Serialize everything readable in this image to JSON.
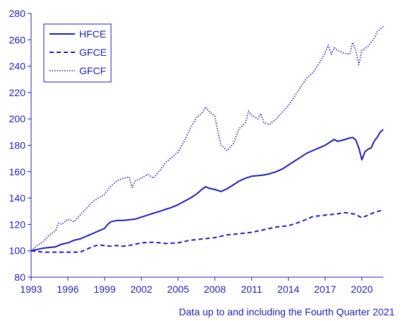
{
  "chart_data": {
    "type": "line",
    "title": "",
    "xlabel": "",
    "ylabel": "",
    "footnote": "Data up to and including the Fourth Quarter 2021",
    "xlim": [
      1993,
      2021.75
    ],
    "ylim": [
      80,
      280
    ],
    "x_ticks": [
      1993,
      1996,
      1999,
      2002,
      2005,
      2008,
      2011,
      2014,
      2017,
      2020
    ],
    "x_tick_labels": [
      "1993",
      "1996",
      "1999",
      "2002",
      "2005",
      "2008",
      "2011",
      "2014",
      "2017",
      "2020"
    ],
    "y_ticks": [
      80,
      100,
      120,
      140,
      160,
      180,
      200,
      220,
      240,
      260,
      280
    ],
    "y_tick_labels": [
      "80",
      "100",
      "120",
      "140",
      "160",
      "180",
      "200",
      "220",
      "240",
      "260",
      "280"
    ],
    "grid": false,
    "legend_position": "top-left",
    "color": "#1f1f9e",
    "series": [
      {
        "name": "HFCE",
        "style": "solid",
        "points": [
          [
            1993,
            100
          ],
          [
            1993.5,
            101
          ],
          [
            1994,
            102
          ],
          [
            1994.5,
            102.5
          ],
          [
            1995,
            103
          ],
          [
            1995.5,
            105
          ],
          [
            1996,
            106
          ],
          [
            1996.5,
            108
          ],
          [
            1997,
            109
          ],
          [
            1997.5,
            111
          ],
          [
            1998,
            113
          ],
          [
            1998.5,
            115
          ],
          [
            1999,
            117
          ],
          [
            1999.25,
            120
          ],
          [
            1999.5,
            122
          ],
          [
            2000,
            123
          ],
          [
            2000.5,
            123
          ],
          [
            2001,
            123.5
          ],
          [
            2001.5,
            124
          ],
          [
            2002,
            125.5
          ],
          [
            2002.5,
            127
          ],
          [
            2003,
            128.5
          ],
          [
            2003.5,
            130
          ],
          [
            2004,
            131.5
          ],
          [
            2004.5,
            133
          ],
          [
            2005,
            135
          ],
          [
            2005.5,
            137.5
          ],
          [
            2006,
            140
          ],
          [
            2006.5,
            143
          ],
          [
            2007,
            147
          ],
          [
            2007.25,
            148.5
          ],
          [
            2007.5,
            147.5
          ],
          [
            2008,
            146.5
          ],
          [
            2008.5,
            145
          ],
          [
            2009,
            147
          ],
          [
            2009.5,
            150
          ],
          [
            2010,
            153
          ],
          [
            2010.5,
            155
          ],
          [
            2011,
            156.5
          ],
          [
            2011.5,
            157
          ],
          [
            2012,
            157.5
          ],
          [
            2012.5,
            158.5
          ],
          [
            2013,
            160
          ],
          [
            2013.5,
            162
          ],
          [
            2014,
            165
          ],
          [
            2014.5,
            168
          ],
          [
            2015,
            171
          ],
          [
            2015.5,
            174
          ],
          [
            2016,
            176
          ],
          [
            2016.5,
            178
          ],
          [
            2017,
            180
          ],
          [
            2017.5,
            183
          ],
          [
            2017.75,
            184.5
          ],
          [
            2018,
            183
          ],
          [
            2018.5,
            184
          ],
          [
            2019,
            185.5
          ],
          [
            2019.25,
            186
          ],
          [
            2019.5,
            184
          ],
          [
            2019.75,
            178
          ],
          [
            2020,
            169
          ],
          [
            2020.25,
            175
          ],
          [
            2020.5,
            177
          ],
          [
            2020.75,
            178
          ],
          [
            2021,
            183
          ],
          [
            2021.25,
            186
          ],
          [
            2021.5,
            190
          ],
          [
            2021.75,
            192
          ]
        ]
      },
      {
        "name": "GFCE",
        "style": "dashed",
        "points": [
          [
            1993,
            100
          ],
          [
            1994,
            99
          ],
          [
            1995,
            99
          ],
          [
            1996,
            99
          ],
          [
            1997,
            99
          ],
          [
            1997.5,
            101
          ],
          [
            1998,
            103
          ],
          [
            1998.5,
            104.5
          ],
          [
            1999,
            104
          ],
          [
            1999.5,
            103.5
          ],
          [
            2000,
            104
          ],
          [
            2000.5,
            103.5
          ],
          [
            2001,
            104
          ],
          [
            2001.5,
            105
          ],
          [
            2002,
            106
          ],
          [
            2003,
            106.5
          ],
          [
            2004,
            105.5
          ],
          [
            2005,
            106
          ],
          [
            2005.5,
            107
          ],
          [
            2006,
            108
          ],
          [
            2007,
            109
          ],
          [
            2008,
            110
          ],
          [
            2009,
            112
          ],
          [
            2010,
            113
          ],
          [
            2011,
            114
          ],
          [
            2012,
            116
          ],
          [
            2013,
            118
          ],
          [
            2014,
            119
          ],
          [
            2015,
            122
          ],
          [
            2016,
            126
          ],
          [
            2017,
            127
          ],
          [
            2018,
            128
          ],
          [
            2018.5,
            129
          ],
          [
            2019,
            128.5
          ],
          [
            2019.5,
            127.5
          ],
          [
            2020,
            125
          ],
          [
            2020.5,
            127
          ],
          [
            2021,
            129
          ],
          [
            2021.75,
            131
          ]
        ]
      },
      {
        "name": "GFCF",
        "style": "dotted",
        "points": [
          [
            1993,
            100
          ],
          [
            1993.5,
            104
          ],
          [
            1994,
            107
          ],
          [
            1994.5,
            112
          ],
          [
            1995,
            115
          ],
          [
            1995.25,
            121
          ],
          [
            1995.5,
            120
          ],
          [
            1996,
            124
          ],
          [
            1996.5,
            122
          ],
          [
            1997,
            127
          ],
          [
            1997.5,
            132
          ],
          [
            1998,
            137
          ],
          [
            1998.5,
            140
          ],
          [
            1999,
            143
          ],
          [
            1999.5,
            149
          ],
          [
            2000,
            153
          ],
          [
            2000.5,
            155
          ],
          [
            2001,
            156
          ],
          [
            2001.25,
            148
          ],
          [
            2001.5,
            153
          ],
          [
            2002,
            155
          ],
          [
            2002.5,
            158
          ],
          [
            2003,
            155
          ],
          [
            2003.5,
            161
          ],
          [
            2004,
            167
          ],
          [
            2004.5,
            171
          ],
          [
            2005,
            175
          ],
          [
            2005.5,
            183
          ],
          [
            2006,
            193
          ],
          [
            2006.5,
            201
          ],
          [
            2007,
            205
          ],
          [
            2007.25,
            209
          ],
          [
            2007.5,
            206
          ],
          [
            2008,
            202
          ],
          [
            2008.25,
            190
          ],
          [
            2008.5,
            180
          ],
          [
            2009,
            176
          ],
          [
            2009.5,
            181
          ],
          [
            2010,
            193
          ],
          [
            2010.5,
            197
          ],
          [
            2010.75,
            206
          ],
          [
            2011,
            203
          ],
          [
            2011.5,
            200
          ],
          [
            2011.75,
            204
          ],
          [
            2012,
            197
          ],
          [
            2012.5,
            196
          ],
          [
            2013,
            200
          ],
          [
            2013.5,
            205
          ],
          [
            2014,
            210
          ],
          [
            2014.5,
            217
          ],
          [
            2015,
            224
          ],
          [
            2015.5,
            231
          ],
          [
            2016,
            235
          ],
          [
            2016.5,
            242
          ],
          [
            2017,
            250
          ],
          [
            2017.25,
            256
          ],
          [
            2017.5,
            249
          ],
          [
            2017.75,
            254
          ],
          [
            2018,
            252
          ],
          [
            2018.5,
            250
          ],
          [
            2019,
            249
          ],
          [
            2019.25,
            258
          ],
          [
            2019.5,
            252
          ],
          [
            2019.75,
            241
          ],
          [
            2020,
            252
          ],
          [
            2020.5,
            255
          ],
          [
            2021,
            261
          ],
          [
            2021.25,
            266
          ],
          [
            2021.75,
            270
          ]
        ]
      }
    ]
  }
}
